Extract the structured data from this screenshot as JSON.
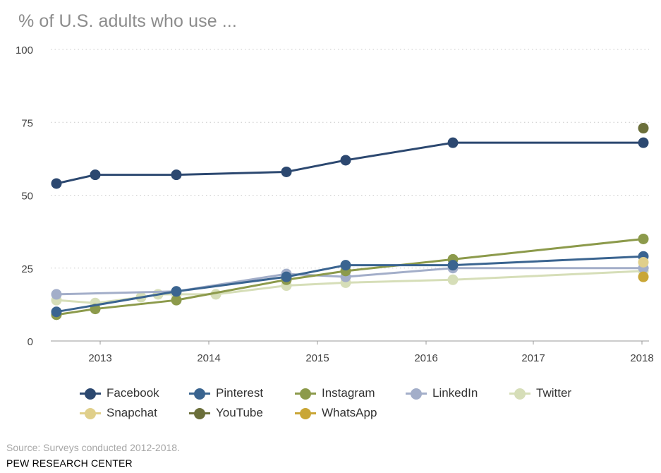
{
  "title": "% of U.S. adults who use ...",
  "source": "Source: Surveys conducted 2012-2018.",
  "brand": "PEW RESEARCH CENTER",
  "chart_data": {
    "type": "line",
    "title": "% of U.S. adults who use ...",
    "xlabel": "",
    "ylabel": "",
    "ylim": [
      0,
      100
    ],
    "y_ticks": [
      0,
      25,
      50,
      75,
      100
    ],
    "x_ticks": [
      "2013",
      "2014",
      "2015",
      "2016",
      "2017",
      "2018"
    ],
    "grid": "horizontal dotted",
    "legend_position": "bottom",
    "series": [
      {
        "name": "Facebook",
        "color": "#2c4870",
        "x": [
          "2012-08",
          "2013-01",
          "2013-09",
          "2014-09",
          "2015-04",
          "2016-04",
          "2018-01"
        ],
        "values": [
          54,
          57,
          57,
          58,
          62,
          68,
          68
        ]
      },
      {
        "name": "Pinterest",
        "color": "#3a6490",
        "x": [
          "2012-08",
          "2013-09",
          "2014-09",
          "2015-04",
          "2016-04",
          "2018-01"
        ],
        "values": [
          10,
          17,
          22,
          26,
          26,
          29
        ]
      },
      {
        "name": "Instagram",
        "color": "#8c9a4b",
        "x": [
          "2012-08",
          "2013-01",
          "2013-09",
          "2014-09",
          "2015-04",
          "2016-04",
          "2018-01"
        ],
        "values": [
          9,
          11,
          14,
          21,
          24,
          28,
          35
        ]
      },
      {
        "name": "LinkedIn",
        "color": "#a3aec9",
        "x": [
          "2012-08",
          "2013-09",
          "2014-09",
          "2015-04",
          "2016-04",
          "2018-01"
        ],
        "values": [
          16,
          17,
          23,
          22,
          25,
          25
        ]
      },
      {
        "name": "Twitter",
        "color": "#d6deb8",
        "x": [
          "2012-08",
          "2013-01",
          "2013-06",
          "2013-08",
          "2013-09",
          "2014-01",
          "2014-09",
          "2015-04",
          "2016-04",
          "2018-01"
        ],
        "values": [
          14,
          13,
          15,
          16,
          16,
          16,
          19,
          20,
          21,
          24
        ]
      },
      {
        "name": "Snapchat",
        "color": "#e0cf8a",
        "x": [
          "2018-01"
        ],
        "values": [
          27
        ]
      },
      {
        "name": "YouTube",
        "color": "#6b6f3a",
        "x": [
          "2018-01"
        ],
        "values": [
          73
        ]
      },
      {
        "name": "WhatsApp",
        "color": "#c9a636",
        "x": [
          "2018-01"
        ],
        "values": [
          22
        ]
      }
    ]
  }
}
